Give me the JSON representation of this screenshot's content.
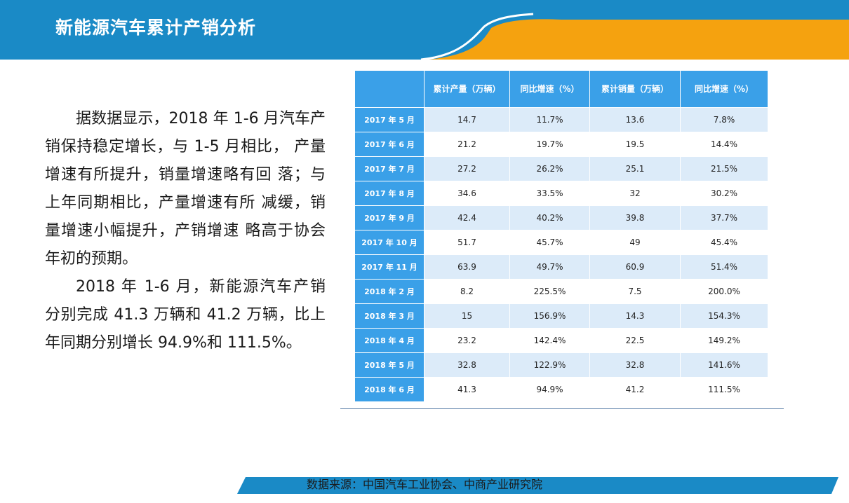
{
  "header": {
    "title": "新能源汽车累计产销分析"
  },
  "paragraphs": [
    "据数据显示，2018 年 1-6 月汽车产销保持稳定增长，与 1-5 月相比， 产量增速有所提升，销量增速略有回 落；与上年同期相比，产量增速有所 减缓，销量增速小幅提升，产销增速 略高于协会年初的预期。",
    "2018 年 1-6 月，新能源汽车产销 分别完成 41.3 万辆和 41.2 万辆，比上 年同期分别增长 94.9%和 111.5%。"
  ],
  "table": {
    "headers": [
      "",
      "累计产量（万辆）",
      "同比增速（%）",
      "累计销量（万辆）",
      "同比增速（%）"
    ],
    "rows": [
      [
        "2017 年 5 月",
        "14.7",
        "11.7%",
        "13.6",
        "7.8%"
      ],
      [
        "2017 年 6 月",
        "21.2",
        "19.7%",
        "19.5",
        "14.4%"
      ],
      [
        "2017 年 7 月",
        "27.2",
        "26.2%",
        "25.1",
        "21.5%"
      ],
      [
        "2017 年 8 月",
        "34.6",
        "33.5%",
        "32",
        "30.2%"
      ],
      [
        "2017 年 9 月",
        "42.4",
        "40.2%",
        "39.8",
        "37.7%"
      ],
      [
        "2017 年 10 月",
        "51.7",
        "45.7%",
        "49",
        "45.4%"
      ],
      [
        "2017 年 11 月",
        "63.9",
        "49.7%",
        "60.9",
        "51.4%"
      ],
      [
        "2018 年 2 月",
        "8.2",
        "225.5%",
        "7.5",
        "200.0%"
      ],
      [
        "2018 年 3 月",
        "15",
        "156.9%",
        "14.3",
        "154.3%"
      ],
      [
        "2018 年 4 月",
        "23.2",
        "142.4%",
        "22.5",
        "149.2%"
      ],
      [
        "2018 年 5 月",
        "32.8",
        "122.9%",
        "32.8",
        "141.6%"
      ],
      [
        "2018 年 6 月",
        "41.3",
        "94.9%",
        "41.2",
        "111.5%"
      ]
    ]
  },
  "footer": {
    "source": "数据来源：中国汽车工业协会、中商产业研究院"
  },
  "colors": {
    "header_blue": "#1a8ac6",
    "accent_orange": "#f5a20f",
    "table_blue": "#3aa0e8",
    "row_light": "#dcebf9"
  }
}
